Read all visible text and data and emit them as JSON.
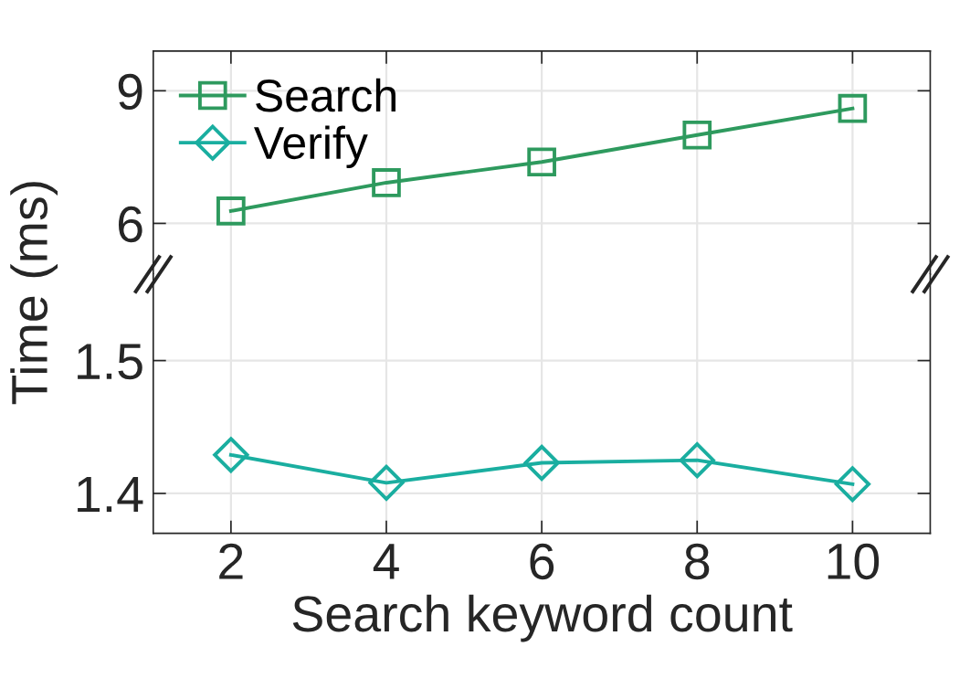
{
  "chart_data": [
    {
      "type": "line",
      "ylabel": "Time (ms)",
      "x": [
        2,
        4,
        6,
        8,
        10
      ],
      "xlim": [
        1,
        11
      ],
      "xticks": [
        2,
        4,
        6,
        8,
        10
      ],
      "ylim": [
        4.85,
        9.9
      ],
      "yticks": [
        6,
        9
      ],
      "tick_labels": "y",
      "grid": true,
      "legend": "top left",
      "line_style": "solid",
      "series": [
        {
          "name": "Search",
          "color": "#2e9a5e",
          "marker": "square",
          "values": [
            6.28,
            6.92,
            7.39,
            8.0,
            8.6
          ]
        }
      ]
    },
    {
      "type": "line",
      "xlabel": "Search keyword count",
      "x": [
        2,
        4,
        6,
        8,
        10
      ],
      "xlim": [
        1,
        11
      ],
      "xticks": [
        2,
        4,
        6,
        8,
        10
      ],
      "ylim": [
        1.37,
        1.565
      ],
      "yticks": [
        1.4,
        1.5
      ],
      "grid": true,
      "line_style": "solid",
      "series": [
        {
          "name": "Verify",
          "color": "#1aaea0",
          "marker": "diamond",
          "values": [
            1.429,
            1.408,
            1.423,
            1.425,
            1.407
          ]
        }
      ]
    }
  ]
}
